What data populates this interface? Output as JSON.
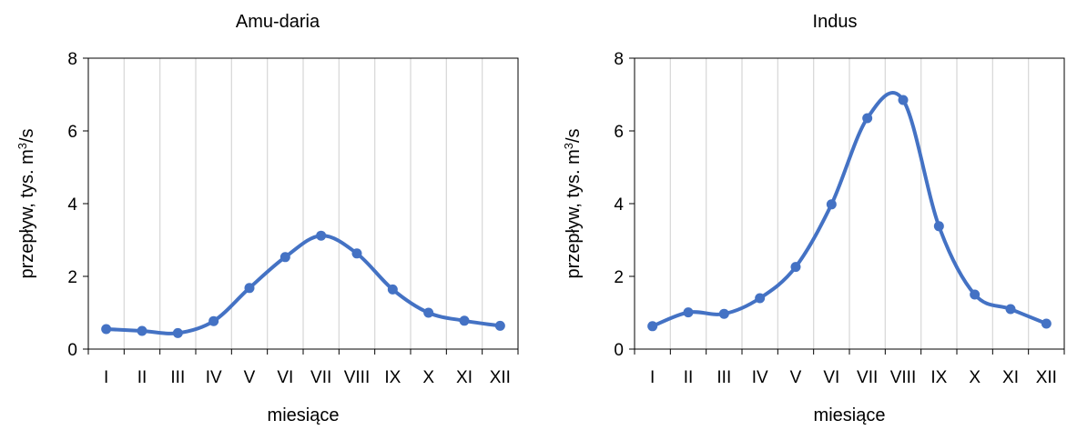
{
  "chart_data": [
    {
      "type": "line",
      "title": "Amu-daria",
      "xlabel": "miesiące",
      "ylabel_pre": "przepływ, tys. m",
      "ylabel_sup": "3",
      "ylabel_post": "/s",
      "categories": [
        "I",
        "II",
        "III",
        "IV",
        "V",
        "VI",
        "VII",
        "VIII",
        "IX",
        "X",
        "XI",
        "XII"
      ],
      "series": [
        {
          "values": [
            0.55,
            0.5,
            0.44,
            0.77,
            1.68,
            2.53,
            3.12,
            2.63,
            1.64,
            1.0,
            0.78,
            0.64
          ]
        }
      ],
      "ylim": [
        0,
        8
      ],
      "yticks": [
        0,
        2,
        4,
        6,
        8
      ],
      "grid": "vertical",
      "line_color": "#4472C4"
    },
    {
      "type": "line",
      "title": "Indus",
      "xlabel": "miesiące",
      "ylabel_pre": "przepływ, tys. m",
      "ylabel_sup": "3",
      "ylabel_post": "/s",
      "categories": [
        "I",
        "II",
        "III",
        "IV",
        "V",
        "VI",
        "VII",
        "VIII",
        "IX",
        "X",
        "XI",
        "XII"
      ],
      "series": [
        {
          "values": [
            0.63,
            1.01,
            0.97,
            1.4,
            2.26,
            3.98,
            6.35,
            6.85,
            3.38,
            1.5,
            1.1,
            0.7
          ]
        }
      ],
      "ylim": [
        0,
        8
      ],
      "yticks": [
        0,
        2,
        4,
        6,
        8
      ],
      "grid": "vertical",
      "line_color": "#4472C4"
    }
  ]
}
